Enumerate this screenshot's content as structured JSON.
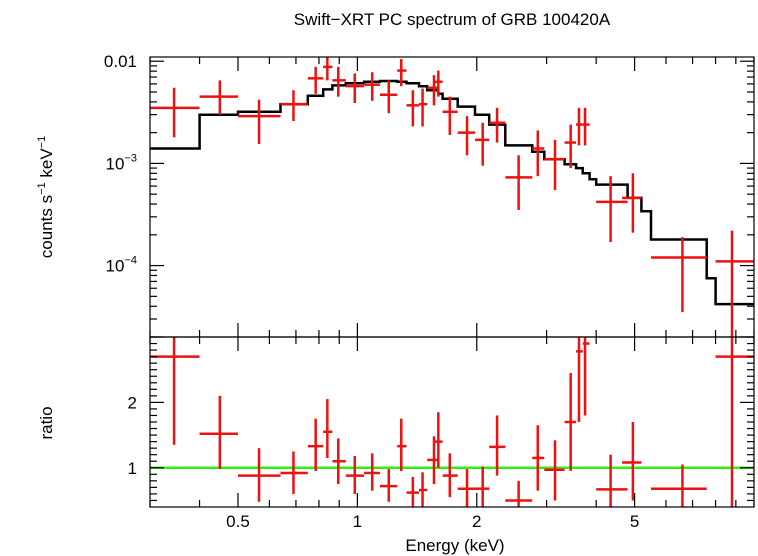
{
  "chart_data": {
    "type": "scatter",
    "title": "Swift−XRT PC spectrum of GRB 100420A",
    "xlabel": "Energy (keV)",
    "x_scale": "log",
    "xlim": [
      0.3,
      10
    ],
    "x_ticks": [
      {
        "value": 0.5,
        "label": "0.5"
      },
      {
        "value": 1,
        "label": "1"
      },
      {
        "value": 2,
        "label": "2"
      },
      {
        "value": 5,
        "label": "5"
      }
    ],
    "panels": [
      {
        "id": "spectrum",
        "ylabel_main": "counts s",
        "ylabel_sup1": "−1",
        "ylabel_mid": " keV",
        "ylabel_sup2": "−1",
        "y_scale": "log",
        "ylim": [
          2e-05,
          0.011
        ],
        "y_ticks": [
          {
            "value": 0.01,
            "base": "0.01",
            "exp": ""
          },
          {
            "value": 0.001,
            "base": "10",
            "exp": "−3"
          },
          {
            "value": 0.0001,
            "base": "10",
            "exp": "−4"
          }
        ],
        "data": [
          {
            "x": 0.345,
            "xerr": [
              0.3,
              0.4
            ],
            "y": 0.0035,
            "yerr": [
              0.0018,
              0.0055
            ]
          },
          {
            "x": 0.45,
            "xerr": [
              0.4,
              0.5
            ],
            "y": 0.0045,
            "yerr": [
              0.003,
              0.0065
            ]
          },
          {
            "x": 0.565,
            "xerr": [
              0.5,
              0.64
            ],
            "y": 0.0029,
            "yerr": [
              0.00155,
              0.0042
            ]
          },
          {
            "x": 0.69,
            "xerr": [
              0.64,
              0.75
            ],
            "y": 0.0038,
            "yerr": [
              0.0026,
              0.0052
            ]
          },
          {
            "x": 0.785,
            "xerr": [
              0.75,
              0.82
            ],
            "y": 0.0068,
            "yerr": [
              0.0048,
              0.0088
            ]
          },
          {
            "x": 0.84,
            "xerr": [
              0.82,
              0.865
            ],
            "y": 0.0088,
            "yerr": [
              0.0065,
              0.0112
            ]
          },
          {
            "x": 0.895,
            "xerr": [
              0.865,
              0.935
            ],
            "y": 0.0065,
            "yerr": [
              0.0045,
              0.0088
            ]
          },
          {
            "x": 0.985,
            "xerr": [
              0.935,
              1.04
            ],
            "y": 0.0057,
            "yerr": [
              0.0039,
              0.0076
            ]
          },
          {
            "x": 1.09,
            "xerr": [
              1.04,
              1.14
            ],
            "y": 0.0059,
            "yerr": [
              0.0041,
              0.0078
            ]
          },
          {
            "x": 1.2,
            "xerr": [
              1.14,
              1.26
            ],
            "y": 0.0047,
            "yerr": [
              0.0031,
              0.0065
            ]
          },
          {
            "x": 1.29,
            "xerr": [
              1.26,
              1.33
            ],
            "y": 0.0081,
            "yerr": [
              0.0057,
              0.0105
            ]
          },
          {
            "x": 1.38,
            "xerr": [
              1.33,
              1.43
            ],
            "y": 0.0037,
            "yerr": [
              0.0023,
              0.0052
            ]
          },
          {
            "x": 1.46,
            "xerr": [
              1.43,
              1.5
            ],
            "y": 0.0038,
            "yerr": [
              0.0023,
              0.0054
            ]
          },
          {
            "x": 1.56,
            "xerr": [
              1.5,
              1.6
            ],
            "y": 0.0055,
            "yerr": [
              0.0037,
              0.0073
            ]
          },
          {
            "x": 1.6,
            "xerr": [
              1.57,
              1.64
            ],
            "y": 0.0063,
            "yerr": [
              0.0045,
              0.0081
            ]
          },
          {
            "x": 1.71,
            "xerr": [
              1.64,
              1.79
            ],
            "y": 0.0032,
            "yerr": [
              0.0019,
              0.0045
            ]
          },
          {
            "x": 1.89,
            "xerr": [
              1.79,
              1.98
            ],
            "y": 0.002,
            "yerr": [
              0.0012,
              0.0029
            ]
          },
          {
            "x": 2.07,
            "xerr": [
              1.98,
              2.15
            ],
            "y": 0.0017,
            "yerr": [
              0.00095,
              0.0025
            ]
          },
          {
            "x": 2.25,
            "xerr": [
              2.15,
              2.36
            ],
            "y": 0.0025,
            "yerr": [
              0.0016,
              0.0035
            ]
          },
          {
            "x": 2.55,
            "xerr": [
              2.36,
              2.76
            ],
            "y": 0.00073,
            "yerr": [
              0.00035,
              0.0012
            ]
          },
          {
            "x": 2.85,
            "xerr": [
              2.76,
              2.96
            ],
            "y": 0.0014,
            "yerr": [
              0.00075,
              0.0021
            ]
          },
          {
            "x": 3.15,
            "xerr": [
              2.96,
              3.33
            ],
            "y": 0.0011,
            "yerr": [
              0.00055,
              0.0017
            ]
          },
          {
            "x": 3.45,
            "xerr": [
              3.33,
              3.56
            ],
            "y": 0.0016,
            "yerr": [
              0.0009,
              0.0024
            ]
          },
          {
            "x": 3.62,
            "xerr": [
              3.56,
              3.7
            ],
            "y": 0.0024,
            "yerr": [
              0.0015,
              0.0035
            ]
          },
          {
            "x": 3.75,
            "xerr": [
              3.7,
              3.85
            ],
            "y": 0.0024,
            "yerr": [
              0.0015,
              0.0035
            ]
          },
          {
            "x": 4.35,
            "xerr": [
              4.0,
              4.8
            ],
            "y": 0.00042,
            "yerr": [
              0.00017,
              0.00075
            ]
          },
          {
            "x": 4.95,
            "xerr": [
              4.65,
              5.2
            ],
            "y": 0.00046,
            "yerr": [
              0.00021,
              0.0008
            ]
          },
          {
            "x": 6.6,
            "xerr": [
              5.5,
              7.6
            ],
            "y": 0.00012,
            "yerr": [
              3.5e-05,
              0.00019
            ]
          },
          {
            "x": 8.8,
            "xerr": [
              8.0,
              10.0
            ],
            "y": 0.00011,
            "yerr": [
              1e-06,
              0.00022
            ]
          }
        ],
        "model": {
          "edges": [
            0.3,
            0.4,
            0.5,
            0.64,
            0.75,
            0.82,
            0.865,
            0.935,
            1.04,
            1.14,
            1.26,
            1.33,
            1.43,
            1.5,
            1.6,
            1.64,
            1.79,
            1.98,
            2.15,
            2.36,
            2.76,
            2.96,
            3.33,
            3.56,
            3.7,
            3.85,
            4.0,
            4.8,
            5.2,
            5.5,
            7.6,
            8.0,
            10.0
          ],
          "values": [
            0.0014,
            0.003,
            0.0032,
            0.0038,
            0.0046,
            0.0053,
            0.0058,
            0.0061,
            0.0063,
            0.0064,
            0.0063,
            0.0061,
            0.0057,
            0.0052,
            0.0048,
            0.0043,
            0.0036,
            0.003,
            0.0024,
            0.0015,
            0.0013,
            0.0011,
            0.00098,
            0.0009,
            0.0008,
            0.0007,
            0.00062,
            0.00046,
            0.00034,
            0.00018,
            7.5e-05,
            4.2e-05
          ]
        }
      },
      {
        "id": "ratio",
        "ylabel": "ratio",
        "y_scale": "linear",
        "ylim": [
          0.4,
          3.0
        ],
        "y_ticks": [
          {
            "value": 1,
            "label": "1"
          },
          {
            "value": 2,
            "label": "2"
          }
        ],
        "reference_line": {
          "y": 1,
          "color": "#33ee11"
        },
        "data": [
          {
            "x": 0.345,
            "xerr": [
              0.3,
              0.4
            ],
            "y": 2.7,
            "yerr": [
              1.35,
              3.6
            ]
          },
          {
            "x": 0.45,
            "xerr": [
              0.4,
              0.5
            ],
            "y": 1.52,
            "yerr": [
              0.98,
              2.1
            ]
          },
          {
            "x": 0.565,
            "xerr": [
              0.5,
              0.64
            ],
            "y": 0.88,
            "yerr": [
              0.48,
              1.3
            ]
          },
          {
            "x": 0.69,
            "xerr": [
              0.64,
              0.75
            ],
            "y": 0.92,
            "yerr": [
              0.6,
              1.25
            ]
          },
          {
            "x": 0.785,
            "xerr": [
              0.75,
              0.82
            ],
            "y": 1.33,
            "yerr": [
              0.95,
              1.75
            ]
          },
          {
            "x": 0.84,
            "xerr": [
              0.82,
              0.865
            ],
            "y": 1.55,
            "yerr": [
              1.15,
              2.05
            ]
          },
          {
            "x": 0.895,
            "xerr": [
              0.865,
              0.935
            ],
            "y": 1.1,
            "yerr": [
              0.75,
              1.45
            ]
          },
          {
            "x": 0.985,
            "xerr": [
              0.935,
              1.04
            ],
            "y": 0.88,
            "yerr": [
              0.6,
              1.18
            ]
          },
          {
            "x": 1.09,
            "xerr": [
              1.04,
              1.14
            ],
            "y": 0.92,
            "yerr": [
              0.65,
              1.22
            ]
          },
          {
            "x": 1.2,
            "xerr": [
              1.14,
              1.26
            ],
            "y": 0.72,
            "yerr": [
              0.48,
              0.98
            ]
          },
          {
            "x": 1.29,
            "xerr": [
              1.26,
              1.33
            ],
            "y": 1.33,
            "yerr": [
              0.95,
              1.75
            ]
          },
          {
            "x": 1.38,
            "xerr": [
              1.33,
              1.43
            ],
            "y": 0.62,
            "yerr": [
              0.38,
              0.86
            ]
          },
          {
            "x": 1.46,
            "xerr": [
              1.43,
              1.5
            ],
            "y": 0.66,
            "yerr": [
              0.4,
              0.93
            ]
          },
          {
            "x": 1.56,
            "xerr": [
              1.5,
              1.6
            ],
            "y": 1.12,
            "yerr": [
              0.75,
              1.48
            ]
          },
          {
            "x": 1.6,
            "xerr": [
              1.57,
              1.64
            ],
            "y": 1.4,
            "yerr": [
              1.0,
              1.85
            ]
          },
          {
            "x": 1.71,
            "xerr": [
              1.64,
              1.79
            ],
            "y": 0.88,
            "yerr": [
              0.55,
              1.22
            ]
          },
          {
            "x": 1.89,
            "xerr": [
              1.79,
              1.98
            ],
            "y": 0.68,
            "yerr": [
              0.4,
              0.98
            ]
          },
          {
            "x": 2.07,
            "xerr": [
              1.98,
              2.15
            ],
            "y": 0.68,
            "yerr": [
              0.38,
              1.02
            ]
          },
          {
            "x": 2.25,
            "xerr": [
              2.15,
              2.36
            ],
            "y": 1.32,
            "yerr": [
              0.88,
              1.8
            ]
          },
          {
            "x": 2.55,
            "xerr": [
              2.36,
              2.76
            ],
            "y": 0.5,
            "yerr": [
              0.2,
              0.8
            ]
          },
          {
            "x": 2.85,
            "xerr": [
              2.76,
              2.96
            ],
            "y": 1.15,
            "yerr": [
              0.65,
              1.65
            ]
          },
          {
            "x": 3.15,
            "xerr": [
              2.96,
              3.33
            ],
            "y": 0.97,
            "yerr": [
              0.5,
              1.42
            ]
          },
          {
            "x": 3.45,
            "xerr": [
              3.33,
              3.56
            ],
            "y": 1.7,
            "yerr": [
              0.95,
              2.45
            ]
          },
          {
            "x": 3.62,
            "xerr": [
              3.56,
              3.7
            ],
            "y": 2.78,
            "yerr": [
              1.7,
              3.9
            ]
          },
          {
            "x": 3.75,
            "xerr": [
              3.7,
              3.85
            ],
            "y": 2.9,
            "yerr": [
              1.8,
              4.0
            ]
          },
          {
            "x": 4.35,
            "xerr": [
              4.0,
              4.8
            ],
            "y": 0.67,
            "yerr": [
              0.3,
              1.2
            ]
          },
          {
            "x": 4.95,
            "xerr": [
              4.65,
              5.2
            ],
            "y": 1.08,
            "yerr": [
              0.5,
              1.7
            ]
          },
          {
            "x": 6.6,
            "xerr": [
              5.5,
              7.6
            ],
            "y": 0.68,
            "yerr": [
              0.2,
              1.05
            ]
          },
          {
            "x": 8.8,
            "xerr": [
              8.0,
              10.0
            ],
            "y": 2.7,
            "yerr": [
              0.02,
              3.5
            ]
          }
        ]
      }
    ],
    "colors": {
      "data": "#ee1111",
      "model": "#000000",
      "reference": "#33ee11",
      "axes": "#000000"
    }
  }
}
